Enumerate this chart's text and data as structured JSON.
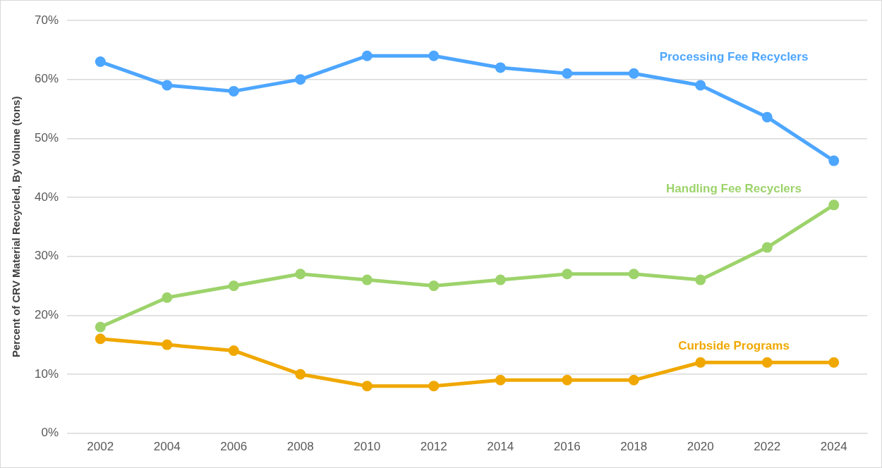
{
  "chart_data": {
    "type": "line",
    "ylabel": "Percent of CRV Material Recycled, By Volume (tons)",
    "categories": [
      "2002",
      "2004",
      "2006",
      "2008",
      "2010",
      "2012",
      "2014",
      "2016",
      "2018",
      "2020",
      "2022",
      "2024"
    ],
    "series": [
      {
        "name": "Processing Fee Recyclers",
        "color": "#4da6ff",
        "values": [
          63,
          59,
          58,
          60,
          64,
          64,
          62,
          61,
          61,
          59,
          53.6,
          46.2
        ]
      },
      {
        "name": "Handling Fee Recyclers",
        "color": "#9dd36b",
        "values": [
          18,
          23,
          25,
          27,
          26,
          25,
          26,
          27,
          27,
          26,
          31.5,
          38.7
        ]
      },
      {
        "name": "Curbside Programs",
        "color": "#f0a800",
        "values": [
          16,
          15,
          14,
          10,
          8,
          8,
          9,
          9,
          9,
          12,
          12,
          12
        ]
      }
    ],
    "ylim": [
      0,
      70
    ],
    "yticks": [
      {
        "value": 0,
        "label": "0%"
      },
      {
        "value": 10,
        "label": "10%"
      },
      {
        "value": 20,
        "label": "20%"
      },
      {
        "value": 30,
        "label": "30%"
      },
      {
        "value": 40,
        "label": "40%"
      },
      {
        "value": 50,
        "label": "50%"
      },
      {
        "value": 60,
        "label": "60%"
      },
      {
        "value": 70,
        "label": "70%"
      }
    ],
    "grid": "y",
    "legend": false,
    "marker": "circle",
    "line_style": "solid"
  }
}
